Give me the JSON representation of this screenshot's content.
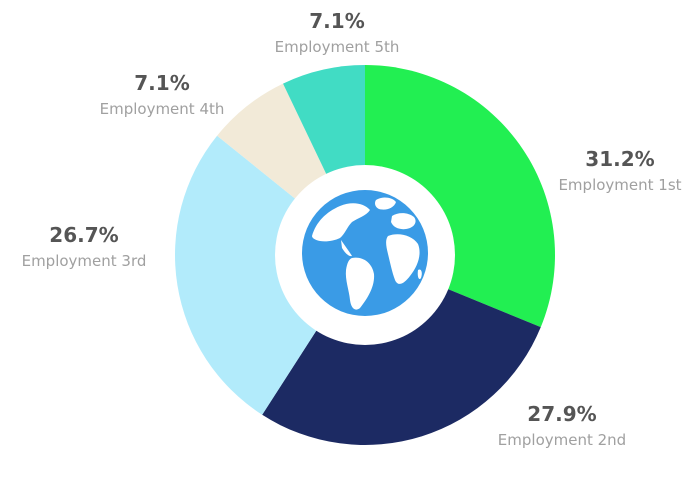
{
  "chart_data": {
    "type": "pie",
    "variant": "donut",
    "center_icon": "globe-icon",
    "slices": [
      {
        "label": "Employment 1st",
        "value": 31.2,
        "value_text": "31.2%",
        "color": "#22ef52"
      },
      {
        "label": "Employment 2nd",
        "value": 27.9,
        "value_text": "27.9%",
        "color": "#1c2a63"
      },
      {
        "label": "Employment 3rd",
        "value": 26.7,
        "value_text": "26.7%",
        "color": "#b2ebfb"
      },
      {
        "label": "Employment 4th",
        "value": 7.1,
        "value_text": "7.1%",
        "color": "#f2ead8"
      },
      {
        "label": "Employment 5th",
        "value": 7.1,
        "value_text": "7.1%",
        "color": "#41dcc4"
      }
    ]
  },
  "colors": {
    "globe_fill": "#3a9be6",
    "globe_land": "#ffffff",
    "hole": "#ffffff",
    "value_text": "#555555",
    "label_text": "#a0a0a0"
  }
}
